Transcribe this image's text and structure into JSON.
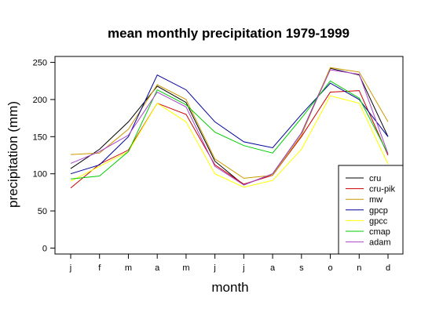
{
  "chart_data": {
    "type": "line",
    "title": "mean monthly precipitation 1979-1999",
    "xlabel": "month",
    "ylabel": "precipitation (mm)",
    "categories": [
      "j",
      "f",
      "m",
      "a",
      "m",
      "j",
      "j",
      "a",
      "s",
      "o",
      "n",
      "d"
    ],
    "ylim": [
      -8,
      258
    ],
    "yticks": [
      0,
      50,
      100,
      150,
      200,
      250
    ],
    "grid": false,
    "legend_position": "bottom-right",
    "series": [
      {
        "name": "cru",
        "color": "#000000",
        "values": [
          107,
          133,
          170,
          218,
          196,
          117,
          85,
          100,
          155,
          242,
          233,
          150
        ]
      },
      {
        "name": "cru-pik",
        "color": "#cc0000",
        "values": [
          81,
          113,
          132,
          195,
          180,
          112,
          86,
          98,
          150,
          210,
          212,
          125
        ]
      },
      {
        "name": "mw",
        "color": "#cc9900",
        "values": [
          126,
          128,
          160,
          220,
          200,
          120,
          94,
          98,
          152,
          243,
          237,
          170
        ]
      },
      {
        "name": "gpcp",
        "color": "#000099",
        "values": [
          100,
          112,
          150,
          233,
          213,
          170,
          143,
          135,
          180,
          222,
          200,
          150
        ]
      },
      {
        "name": "gpcc",
        "color": "#ffff00",
        "values": [
          90,
          110,
          130,
          195,
          170,
          100,
          82,
          91,
          133,
          205,
          195,
          113
        ]
      },
      {
        "name": "cmap",
        "color": "#00cc00",
        "values": [
          93,
          97,
          130,
          213,
          193,
          156,
          138,
          128,
          175,
          225,
          202,
          127
        ]
      },
      {
        "name": "adam",
        "color": "#aa44cc",
        "values": [
          114,
          130,
          152,
          210,
          190,
          110,
          85,
          100,
          155,
          240,
          234,
          127
        ]
      }
    ]
  }
}
